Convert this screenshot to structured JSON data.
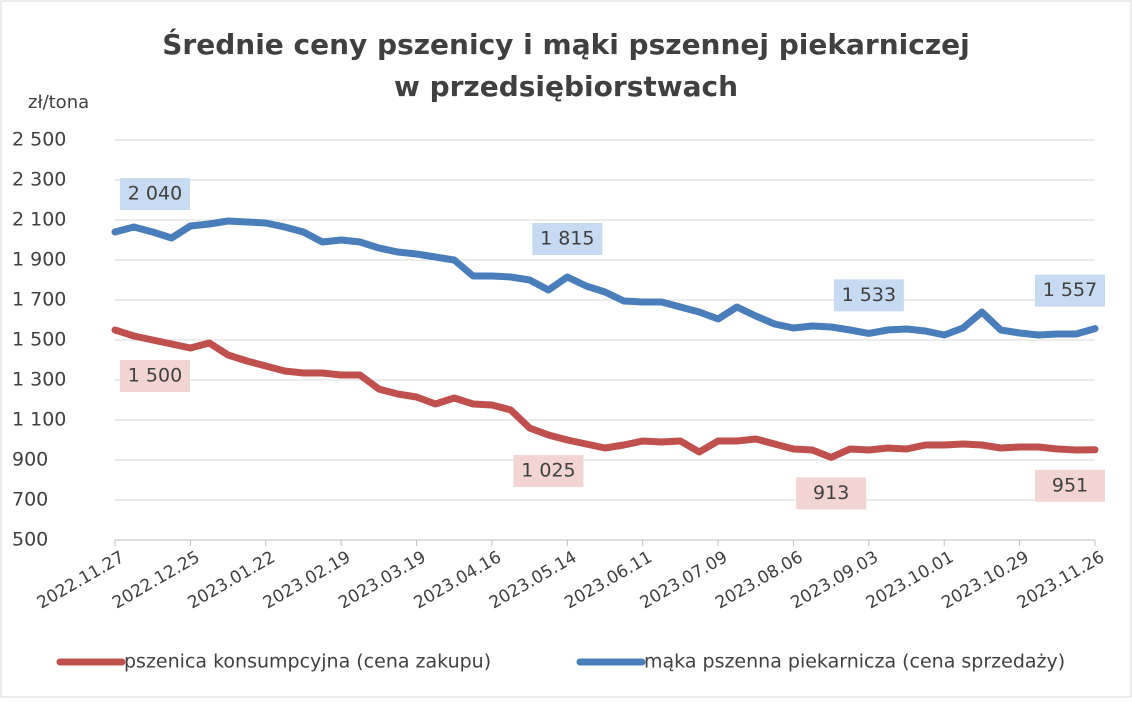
{
  "chart_data": {
    "type": "line",
    "title": "Średnie ceny pszenicy i mąki pszennej piekarniczej",
    "subtitle": "w przedsiębiorstwach",
    "y_label": "zł/tona",
    "categories": [
      "2022.11.27",
      null,
      null,
      null,
      "2022.12.25",
      null,
      null,
      null,
      "2023.01.22",
      null,
      null,
      null,
      "2023.02.19",
      null,
      null,
      null,
      "2023.03.19",
      null,
      null,
      null,
      "2023.04.16",
      null,
      null,
      null,
      "2023.05.14",
      null,
      null,
      null,
      "2023.06.11",
      null,
      null,
      null,
      "2023.07.09",
      null,
      null,
      null,
      "2023.08.06",
      null,
      null,
      null,
      "2023.09.03",
      null,
      null,
      null,
      "2023.10.01",
      null,
      null,
      null,
      "2023.10.29",
      null,
      null,
      null,
      "2023.11.26"
    ],
    "ylim": [
      500,
      2500
    ],
    "yticks": [
      500,
      700,
      900,
      {
        "value": 1100,
        "label": "1 100"
      },
      {
        "value": 1300,
        "label": "1 300"
      },
      {
        "value": 1500,
        "label": "1 500"
      },
      {
        "value": 1700,
        "label": "1 700"
      },
      {
        "value": 1900,
        "label": "1 900"
      },
      {
        "value": 2100,
        "label": "2 100"
      },
      {
        "value": 2300,
        "label": "2 300"
      },
      {
        "value": 2500,
        "label": "2 500"
      }
    ],
    "grid": true,
    "series": [
      {
        "name": "pszenica konsumpcyjna (cena zakupu)",
        "color": "#c0504d",
        "label_bg": "#f2d5d3",
        "label_side": "below",
        "values": [
          1550,
          1520,
          1500,
          1480,
          1460,
          1485,
          1425,
          1395,
          1370,
          1345,
          1335,
          1335,
          1325,
          1325,
          1255,
          1230,
          1215,
          1180,
          1210,
          1180,
          1175,
          1150,
          1060,
          1025,
          1000,
          980,
          960,
          975,
          995,
          990,
          995,
          940,
          995,
          995,
          1005,
          980,
          955,
          950,
          913,
          955,
          950,
          960,
          955,
          975,
          975,
          980,
          975,
          960,
          965,
          965,
          955,
          950,
          951
        ],
        "value_labels": [
          null,
          null,
          "1 500",
          null,
          null,
          null,
          null,
          null,
          null,
          null,
          null,
          null,
          null,
          null,
          null,
          null,
          null,
          null,
          null,
          null,
          null,
          null,
          null,
          "1 025",
          null,
          null,
          null,
          null,
          null,
          null,
          null,
          null,
          null,
          null,
          null,
          null,
          null,
          null,
          "913",
          null,
          null,
          null,
          null,
          null,
          null,
          null,
          null,
          null,
          null,
          null,
          null,
          null,
          "951"
        ]
      },
      {
        "name": "mąka pszenna piekarnicza (cena sprzedaży)",
        "color": "#4a7ebb",
        "label_bg": "#c6daf1",
        "label_side": "above",
        "values": [
          2040,
          2065,
          2040,
          2010,
          2070,
          2080,
          2095,
          2090,
          2085,
          2065,
          2040,
          1990,
          2000,
          1990,
          1960,
          1940,
          1930,
          1915,
          1900,
          1820,
          1820,
          1815,
          1800,
          1750,
          1815,
          1770,
          1740,
          1695,
          1690,
          1690,
          1665,
          1640,
          1605,
          1665,
          1620,
          1580,
          1560,
          1570,
          1565,
          1550,
          1533,
          1550,
          1555,
          1545,
          1525,
          1560,
          1640,
          1550,
          1535,
          1525,
          1530,
          1530,
          1557
        ],
        "value_labels": [
          "2 040",
          null,
          null,
          null,
          null,
          null,
          null,
          null,
          null,
          null,
          null,
          null,
          null,
          null,
          null,
          null,
          null,
          null,
          null,
          null,
          null,
          null,
          null,
          null,
          "1 815",
          null,
          null,
          null,
          null,
          null,
          null,
          null,
          null,
          null,
          null,
          null,
          null,
          null,
          null,
          null,
          "1 533",
          null,
          null,
          null,
          null,
          null,
          null,
          null,
          null,
          null,
          null,
          null,
          "1 557"
        ]
      }
    ]
  }
}
